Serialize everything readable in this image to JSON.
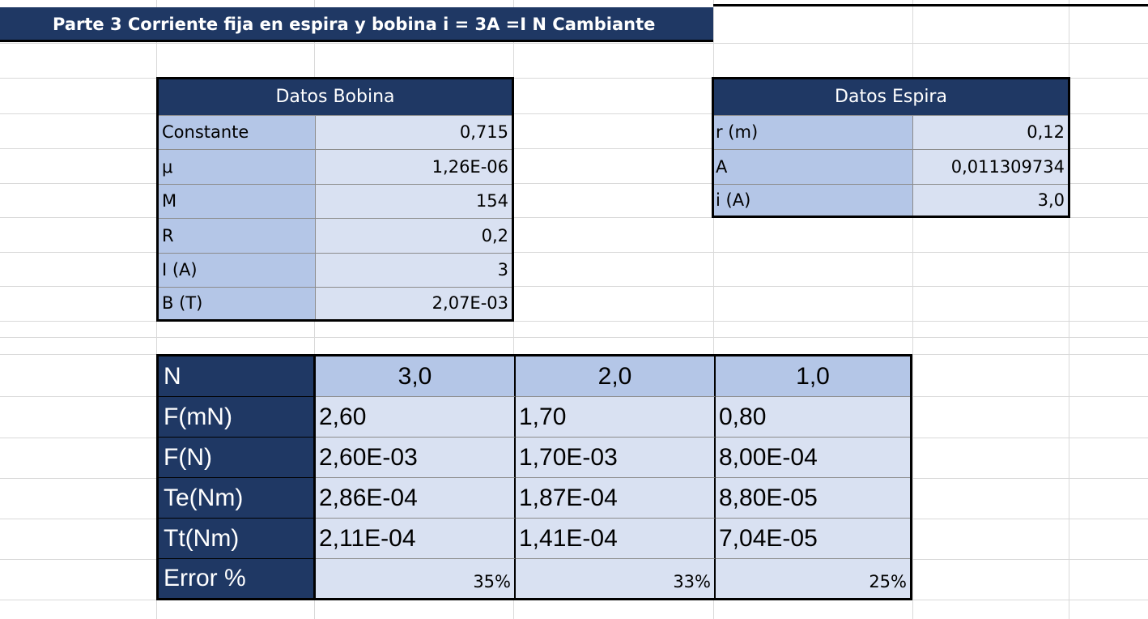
{
  "title": "Parte 3 Corriente fija en espira y bobina i = 3A =I N Cambiante",
  "bobina": {
    "header": "Datos Bobina",
    "rows": [
      {
        "label": "Constante",
        "value": "0,715"
      },
      {
        "label": "μ",
        "value": "1,26E-06"
      },
      {
        "label": "M",
        "value": "154"
      },
      {
        "label": "R",
        "value": "0,2"
      },
      {
        "label": "I (A)",
        "value": "3"
      },
      {
        "label": "B (T)",
        "value": "2,07E-03"
      }
    ]
  },
  "espira": {
    "header": "Datos Espira",
    "rows": [
      {
        "label": "r (m)",
        "value": "0,12"
      },
      {
        "label": "A",
        "value": "0,011309734"
      },
      {
        "label": "i (A)",
        "value": "3,0"
      }
    ]
  },
  "results": {
    "header_label": "N",
    "columns": [
      "3,0",
      "2,0",
      "1,0"
    ],
    "rows": [
      {
        "label": "F(mN)",
        "values": [
          "2,60",
          "1,70",
          "0,80"
        ]
      },
      {
        "label": "F(N)",
        "values": [
          "2,60E-03",
          "1,70E-03",
          "8,00E-04"
        ]
      },
      {
        "label": "Te(Nm)",
        "values": [
          "2,86E-04",
          "1,87E-04",
          "8,80E-05"
        ]
      },
      {
        "label": "Tt(Nm)",
        "values": [
          "2,11E-04",
          "1,41E-04",
          "7,04E-05"
        ]
      }
    ],
    "error": {
      "label": "Error %",
      "values": [
        "35%",
        "33%",
        "25%"
      ]
    }
  }
}
